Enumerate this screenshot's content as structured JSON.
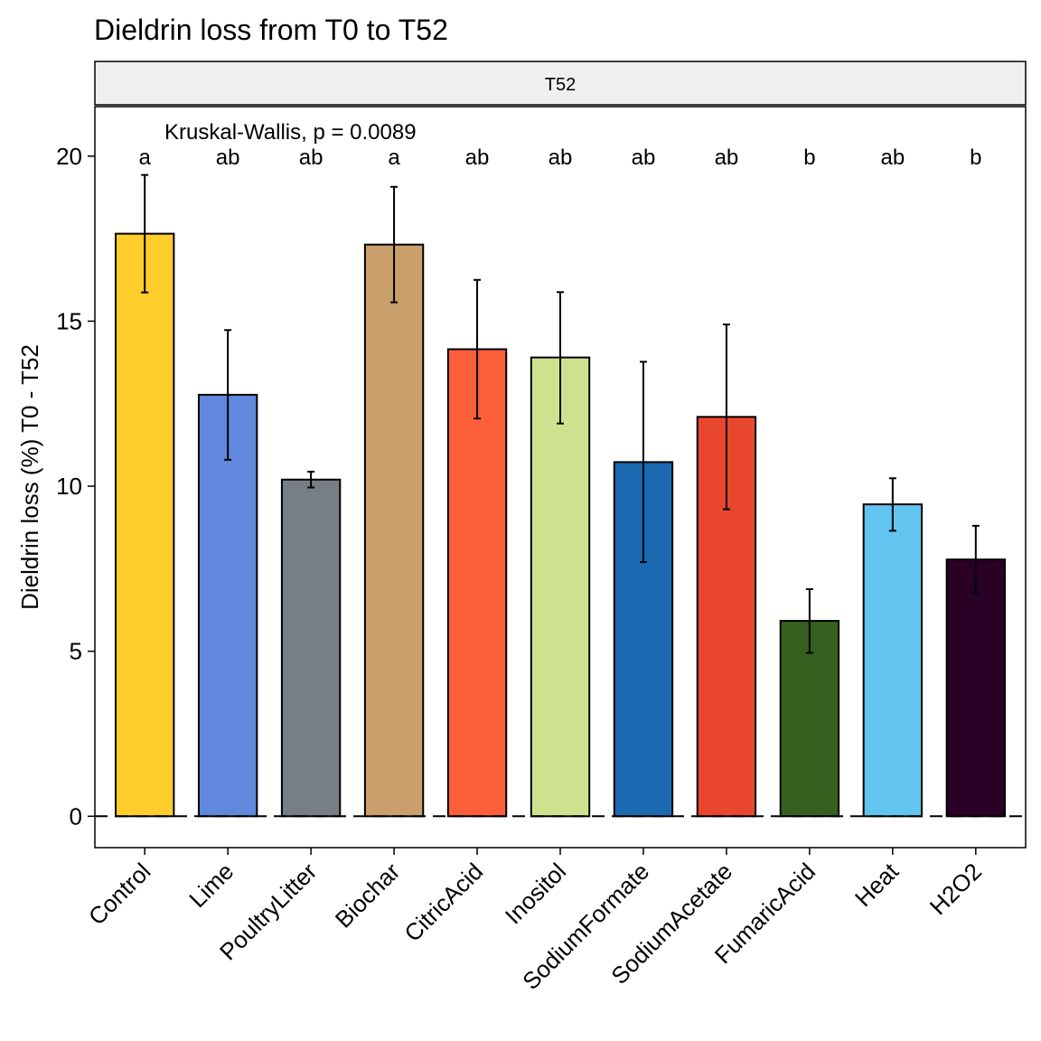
{
  "chart_data": {
    "type": "bar",
    "title": "Dieldrin loss from T0 to T52",
    "facet_label": "T52",
    "annotation": "Kruskal-Wallis, p = 0.0089",
    "xlabel": "",
    "ylabel": "Dieldrin loss (%) T0 - T52",
    "ylim": [
      -0.95,
      21.5
    ],
    "yticks": [
      0,
      5,
      10,
      15,
      20
    ],
    "ytick_labels": [
      "0",
      "5",
      "10",
      "15",
      "20"
    ],
    "grid": false,
    "reference_line": 0,
    "categories": [
      "Control",
      "Lime",
      "PoultryLitter",
      "Biochar",
      "CitricAcid",
      "Inositol",
      "SodiumFormate",
      "SodiumAcetate",
      "FumaricAcid",
      "Heat",
      "H2O2"
    ],
    "values": [
      17.65,
      12.77,
      10.2,
      17.32,
      14.15,
      13.9,
      10.73,
      12.1,
      5.92,
      9.45,
      7.78
    ],
    "error_low": [
      15.87,
      10.8,
      9.96,
      15.57,
      12.05,
      11.9,
      7.7,
      9.3,
      4.95,
      8.65,
      6.78
    ],
    "error_high": [
      19.43,
      14.73,
      10.44,
      19.07,
      16.25,
      15.88,
      13.77,
      14.9,
      6.88,
      10.24,
      8.8
    ],
    "group_letters": [
      "a",
      "ab",
      "ab",
      "a",
      "ab",
      "ab",
      "ab",
      "ab",
      "b",
      "ab",
      "b"
    ],
    "colors": [
      "#FFCD2C",
      "#6088DC",
      "#777E86",
      "#C9A06C",
      "#FD5F3A",
      "#CFE18F",
      "#1B6AB1",
      "#E9472D",
      "#36601F",
      "#61C5F0",
      "#2A0026"
    ]
  }
}
